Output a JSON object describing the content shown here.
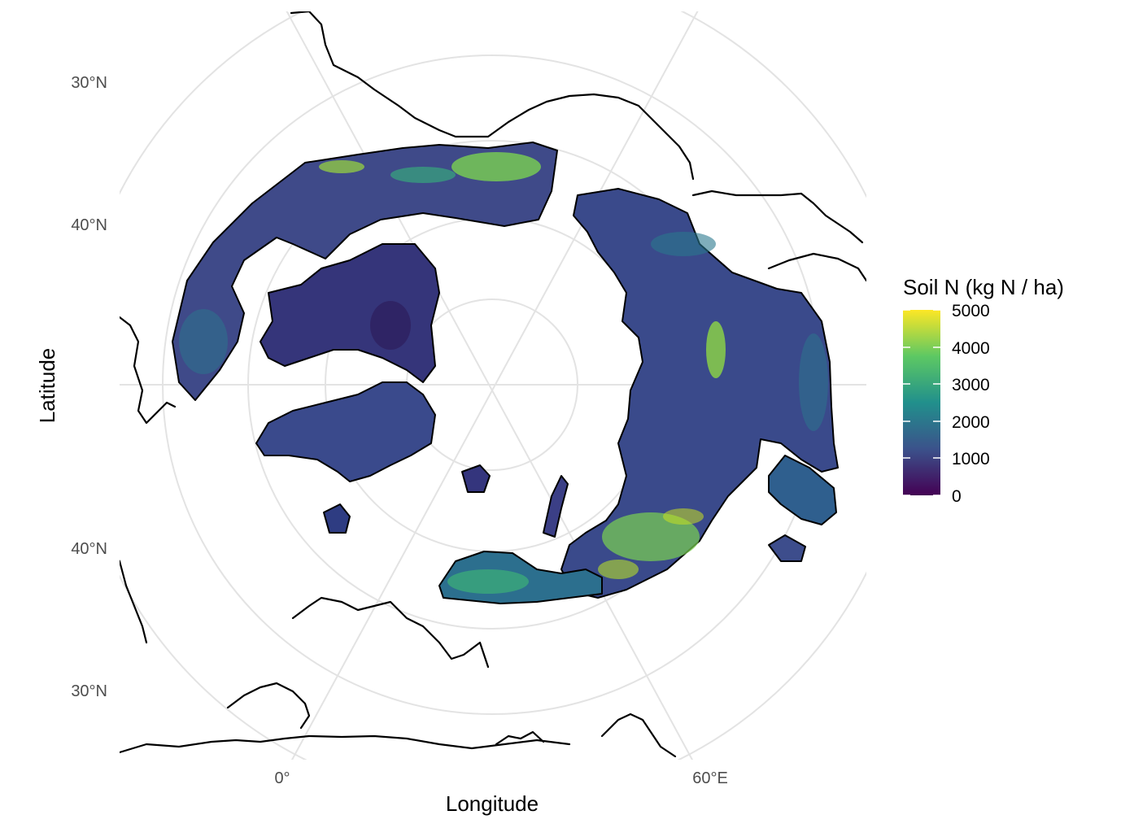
{
  "chart_data": {
    "type": "heatmap",
    "projection": "north polar stereographic",
    "xlabel": "Longitude",
    "ylabel": "Latitude",
    "x_ticks": [
      "0°",
      "60°E"
    ],
    "y_ticks_top": [
      "30°N",
      "40°N"
    ],
    "y_ticks_bottom": [
      "40°N",
      "30°N"
    ],
    "legend": {
      "title": "Soil N (kg N / ha)",
      "range": [
        0,
        5000
      ],
      "ticks": [
        "5000",
        "4000",
        "3000",
        "2000",
        "1000",
        "0"
      ],
      "colormap": "viridis",
      "colors": [
        "#440154",
        "#3b528b",
        "#21908c",
        "#5dc863",
        "#fde725"
      ],
      "placement": "right"
    },
    "coastline_color": "#000000",
    "graticule_color": "#e3e3e3"
  }
}
